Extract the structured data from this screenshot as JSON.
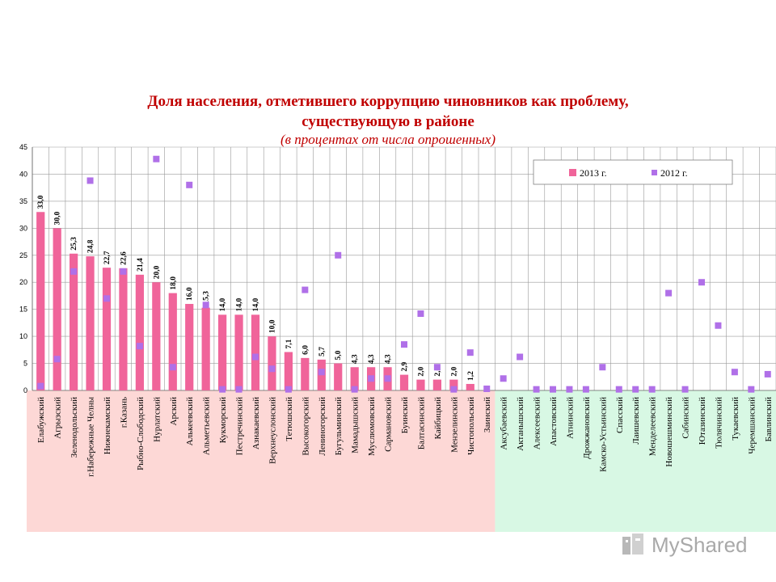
{
  "chart_data": {
    "type": "bar",
    "title": "Доля населения, отметившего коррупцию чиновников как проблему,",
    "title_line2": "существующую в районе",
    "subtitle": "(в процентах от числа опрошенных)",
    "ylim": [
      0,
      45
    ],
    "yticks": [
      "0",
      "5",
      "10",
      "15",
      "20",
      "25",
      "30",
      "35",
      "40",
      "45"
    ],
    "grid": true,
    "legend_position": "top-right",
    "colors": {
      "bar_2013": "#f0649a",
      "marker_2012": "#b070e8",
      "group_red": "#fdd8d6",
      "group_green": "#d8f8e4"
    },
    "categories": [
      "Елабужский",
      "Агрызский",
      "Зеленодольский",
      "г.Набережные Челны",
      "Нижнекамский",
      "г.Казань",
      "Рыбно-Слободский",
      "Нурлатский",
      "Арский",
      "Алькеевский",
      "Альметьевский",
      "Кукморский",
      "Пестречинский",
      "Азнакаевский",
      "Верхнеуслонский",
      "Тетюшский",
      "Высокогорский",
      "Лениногорский",
      "Бугульминский",
      "Мамадышский",
      "Муслюмовский",
      "Сармановский",
      "Буинский",
      "Балтасинский",
      "Кайбицкий",
      "Мензелинский",
      "Чистопольский",
      "Заинский",
      "Аксубаевский",
      "Актанышский",
      "Алексеевский",
      "Апастовский",
      "Атнинский",
      "Дрожжановский",
      "Камско-Устьинский",
      "Спасский",
      "Лаишевский",
      "Менделеевский",
      "Новошешминский",
      "Сабинский",
      "Ютазинский",
      "Тюлячинский",
      "Тукаевский",
      "Черемшанский",
      "Бавлинский"
    ],
    "series": [
      {
        "name": "2013 г.",
        "type": "bar",
        "values": [
          33.0,
          30.0,
          25.3,
          24.8,
          22.7,
          22.6,
          21.4,
          20.0,
          18.0,
          16.0,
          15.3,
          14.0,
          14.0,
          14.0,
          10.0,
          7.1,
          6.0,
          5.7,
          5.0,
          4.3,
          4.3,
          4.3,
          2.9,
          2.0,
          2.0,
          2.0,
          1.2,
          0,
          0,
          0,
          0,
          0,
          0,
          0,
          0,
          0,
          0,
          0,
          0,
          0,
          0,
          0,
          0,
          0,
          0
        ],
        "labels": [
          "33,0",
          "30,0",
          "25,3",
          "24,8",
          "22,7",
          "22,6",
          "21,4",
          "20,0",
          "18,0",
          "16,0",
          "15,3",
          "14,0",
          "14,0",
          "14,0",
          "10,0",
          "7,1",
          "6,0",
          "5,7",
          "5,0",
          "4,3",
          "4,3",
          "4,3",
          "2,9",
          "2,0",
          "2,0",
          "2,0",
          "1,2",
          "",
          "",
          "",
          "",
          "",
          "",
          "",
          "",
          "",
          "",
          "",
          "",
          "",
          "",
          "",
          "",
          "",
          ""
        ]
      },
      {
        "name": "2012 г.",
        "type": "marker",
        "values": [
          0.8,
          5.8,
          22.0,
          38.8,
          17.0,
          22.0,
          8.2,
          42.8,
          4.3,
          38.0,
          15.8,
          0.2,
          0.2,
          6.2,
          4.0,
          0.2,
          18.6,
          3.4,
          25.0,
          0.2,
          2.2,
          2.2,
          8.5,
          14.2,
          4.3,
          0.2,
          7.0,
          0.3,
          2.2,
          6.2,
          0.2,
          0.2,
          0.2,
          0.2,
          4.3,
          0.2,
          0.2,
          0.2,
          18.0,
          0.2,
          20.0,
          12.0,
          3.4,
          0.2,
          3.0
        ]
      }
    ],
    "groups": [
      {
        "from": 0,
        "to": 27,
        "color": "group_red"
      },
      {
        "from": 28,
        "to": 44,
        "color": "group_green"
      }
    ]
  },
  "watermark": {
    "text": "MyShared"
  }
}
